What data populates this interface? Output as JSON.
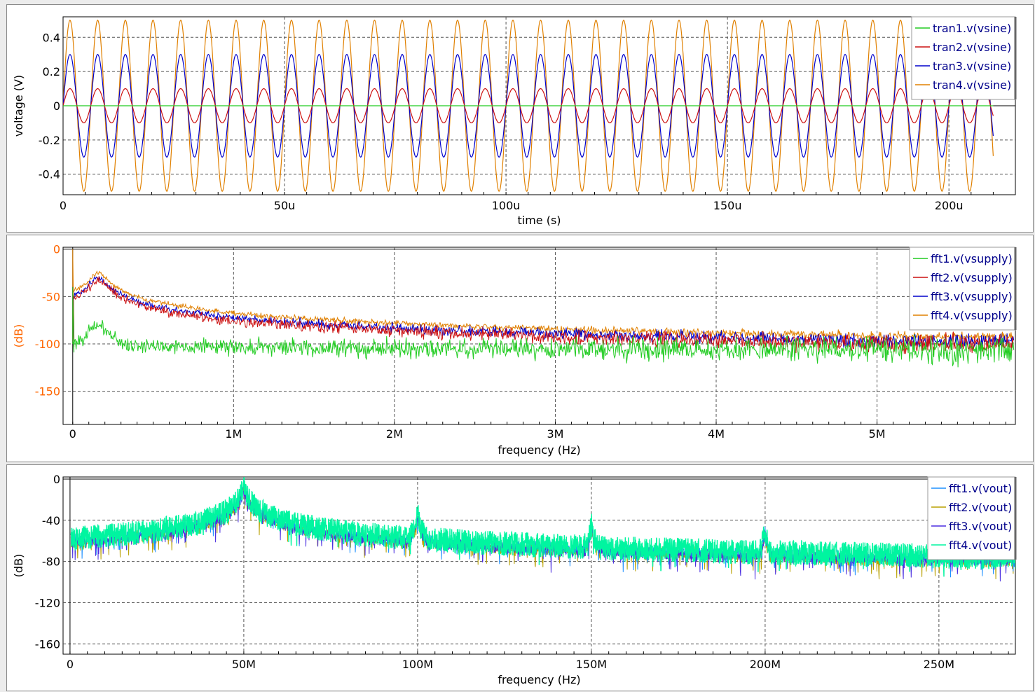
{
  "chart_data": [
    {
      "type": "line",
      "xlabel": "time (s)",
      "ylabel": "voltage (V)",
      "xlim": [
        0,
        0.000215
      ],
      "ylim": [
        -0.52,
        0.52
      ],
      "x_ticks": [
        0,
        5e-05,
        0.0001,
        0.00015,
        0.0002
      ],
      "x_tick_labels": [
        "0",
        "50u",
        "100u",
        "150u",
        "200u"
      ],
      "y_ticks": [
        0.4,
        0.2,
        0,
        -0.2,
        -0.4
      ],
      "y_tick_labels": [
        "0.4",
        "0.2",
        "0",
        "-0.2",
        "-0.4"
      ],
      "grid": true,
      "legend_position": "top-right",
      "signal": {
        "kind": "sine",
        "frequency_hz": 160000,
        "x_end": 0.00021
      },
      "series": [
        {
          "name": "tran1.v(vsine)",
          "color": "#22cc22",
          "amplitude": 0
        },
        {
          "name": "tran2.v(vsine)",
          "color": "#cc1111",
          "amplitude": 0.1
        },
        {
          "name": "tran3.v(vsine)",
          "color": "#0000cc",
          "amplitude": 0.3
        },
        {
          "name": "tran4.v(vsine)",
          "color": "#e08000",
          "amplitude": 0.5
        }
      ]
    },
    {
      "type": "line",
      "xlabel": "frequency (Hz)",
      "ylabel": "(dB)",
      "ylabel_color": "#ff6600",
      "xlim": [
        -60000,
        5860000
      ],
      "ylim": [
        -185,
        2
      ],
      "x_ticks": [
        0,
        1000000,
        2000000,
        3000000,
        4000000,
        5000000
      ],
      "x_tick_labels": [
        "0",
        "1M",
        "2M",
        "3M",
        "4M",
        "5M"
      ],
      "y_ticks": [
        0,
        -50,
        -100,
        -150
      ],
      "y_tick_labels": [
        "0",
        "-50",
        "-100",
        "-150"
      ],
      "grid": true,
      "legend_position": "top-right",
      "series": [
        {
          "name": "fft1.v(vsupply)",
          "color": "#22cc22",
          "peak_hz": 160000,
          "peak_db": -80,
          "floor_db": -101,
          "noise_db": 6
        },
        {
          "name": "fft2.v(vsupply)",
          "color": "#cc1111",
          "peak_hz": 160000,
          "peak_db": -33,
          "floor_db": -95,
          "noise_db": 4
        },
        {
          "name": "fft3.v(vsupply)",
          "color": "#0000cc",
          "peak_hz": 160000,
          "peak_db": -30,
          "floor_db": -92,
          "noise_db": 3
        },
        {
          "name": "fft4.v(vsupply)",
          "color": "#e08000",
          "peak_hz": 160000,
          "peak_db": -25,
          "floor_db": -87,
          "noise_db": 2
        }
      ]
    },
    {
      "type": "line",
      "xlabel": "frequency (Hz)",
      "ylabel": "(dB)",
      "xlim": [
        -2000000,
        272000000
      ],
      "ylim": [
        -170,
        2
      ],
      "x_ticks": [
        0,
        50000000,
        100000000,
        150000000,
        200000000,
        250000000
      ],
      "x_tick_labels": [
        "0",
        "50M",
        "100M",
        "150M",
        "200M",
        "250M"
      ],
      "y_ticks": [
        0,
        -40,
        -80,
        -120,
        -160
      ],
      "y_tick_labels": [
        "0",
        "-40",
        "-80",
        "-120",
        "-160"
      ],
      "grid": true,
      "legend_position": "top-right",
      "harmonics_hz": [
        50000000,
        100000000,
        150000000,
        200000000,
        250000000
      ],
      "harmonic_peaks_db": [
        0,
        -28,
        -38,
        -44,
        -78
      ],
      "series": [
        {
          "name": "fft1.v(vout)",
          "color": "#1e90ff"
        },
        {
          "name": "fft2.v(vout)",
          "color": "#b8a000"
        },
        {
          "name": "fft3.v(vout)",
          "color": "#4b2fe0"
        },
        {
          "name": "fft4.v(vout)",
          "color": "#00f5a0"
        }
      ]
    }
  ]
}
